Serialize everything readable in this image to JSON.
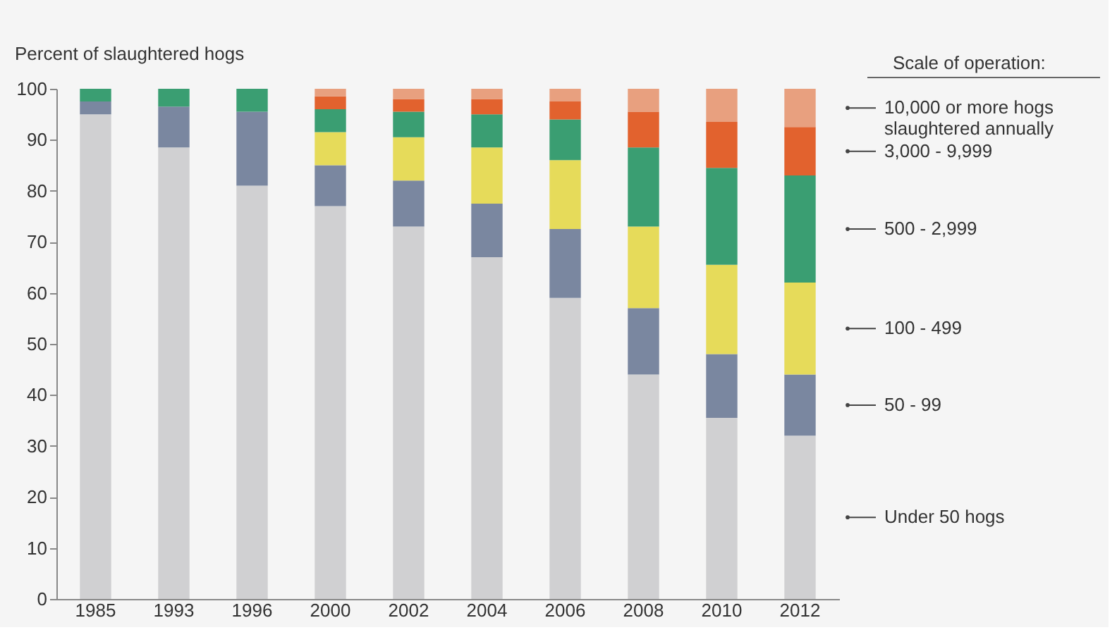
{
  "chart_data": {
    "type": "bar",
    "stacked": true,
    "ylabel": "Percent of slaughtered hogs",
    "legend_title": "Scale of operation:",
    "legend": "right",
    "grid": false,
    "categories": [
      "1985",
      "1993",
      "1996",
      "2000",
      "2002",
      "2004",
      "2006",
      "2008",
      "2010",
      "2012"
    ],
    "ylim": [
      0,
      100
    ],
    "yticks": [
      0,
      10,
      20,
      30,
      40,
      50,
      60,
      70,
      80,
      90,
      100
    ],
    "series": [
      {
        "name": "Under 50 hogs",
        "color": "#d0d0d2",
        "values": [
          95,
          88.5,
          81,
          77,
          73,
          67,
          59,
          44,
          35.5,
          32
        ]
      },
      {
        "name": "50 - 99",
        "color": "#7a87a0",
        "values": [
          2.5,
          8,
          14.5,
          8,
          9,
          10.5,
          13.5,
          13,
          12.5,
          12
        ]
      },
      {
        "name": "100 - 499",
        "color": "#e6db5a",
        "values": [
          0,
          0,
          0,
          6.5,
          8.5,
          11,
          13.5,
          16,
          17.5,
          18
        ]
      },
      {
        "name": "500 - 2,999",
        "color": "#3a9e72",
        "values": [
          2.5,
          3.5,
          4.5,
          4.5,
          5,
          6.5,
          8,
          15.5,
          19,
          21
        ]
      },
      {
        "name": "3,000 - 9,999",
        "color": "#e2622e",
        "values": [
          0,
          0,
          0,
          2.5,
          2.5,
          3,
          3.5,
          7,
          9,
          9.5
        ]
      },
      {
        "name": "10,000 or more hogs\nslaughtered annually",
        "color": "#e8a07f",
        "values": [
          0,
          0,
          0,
          1.5,
          2,
          2,
          2.5,
          4.5,
          6.5,
          7.5
        ]
      }
    ]
  }
}
